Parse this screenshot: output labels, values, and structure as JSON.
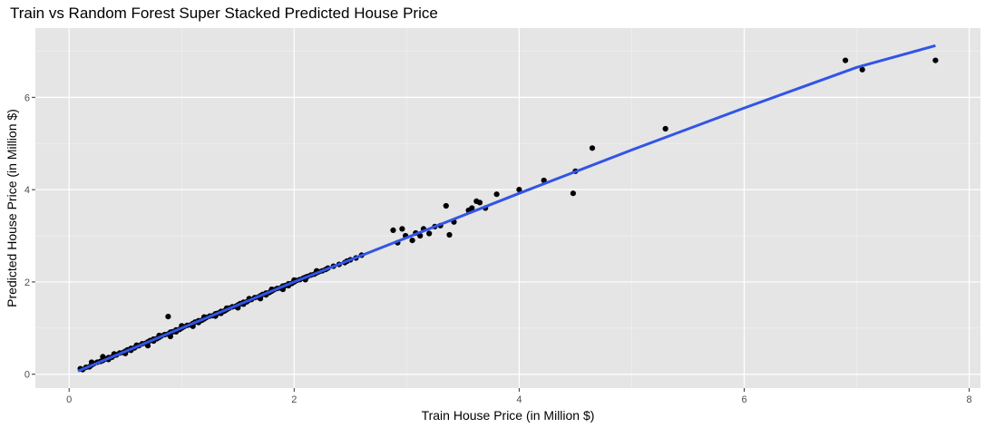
{
  "chart_data": {
    "type": "scatter",
    "title": "Train vs Random Forest Super Stacked Predicted House Price",
    "xlabel": "Train House Price (in Million $)",
    "ylabel": "Predicted House Price (in Million $)",
    "xlim": [
      -0.3,
      8.1
    ],
    "ylim": [
      -0.3,
      7.5
    ],
    "xticks": [
      0,
      2,
      4,
      6,
      8
    ],
    "yticks": [
      0,
      2,
      4,
      6
    ],
    "grid": true,
    "background": "#e5e5e5",
    "point_color": "#000000",
    "line_color": "#3155e6",
    "fit_line": {
      "x": [
        0.08,
        1.0,
        2.0,
        3.0,
        4.0,
        5.0,
        6.0,
        7.0,
        7.7
      ],
      "y": [
        0.07,
        1.0,
        2.0,
        2.96,
        3.92,
        4.86,
        5.77,
        6.65,
        7.12
      ]
    },
    "points": {
      "x": [
        0.1,
        0.12,
        0.15,
        0.18,
        0.2,
        0.22,
        0.25,
        0.28,
        0.3,
        0.32,
        0.35,
        0.38,
        0.4,
        0.42,
        0.45,
        0.48,
        0.5,
        0.52,
        0.55,
        0.58,
        0.6,
        0.62,
        0.65,
        0.68,
        0.7,
        0.72,
        0.75,
        0.78,
        0.8,
        0.82,
        0.85,
        0.88,
        0.9,
        0.92,
        0.95,
        0.98,
        1.0,
        1.02,
        1.05,
        1.08,
        1.1,
        1.12,
        1.15,
        1.18,
        1.2,
        1.22,
        1.25,
        1.28,
        1.3,
        1.32,
        1.35,
        1.38,
        1.4,
        1.42,
        1.45,
        1.48,
        1.5,
        1.52,
        1.55,
        1.58,
        1.6,
        1.62,
        1.65,
        1.68,
        1.7,
        1.72,
        1.75,
        1.78,
        1.8,
        1.82,
        1.85,
        1.88,
        1.9,
        1.92,
        1.95,
        1.98,
        2.0,
        2.02,
        2.05,
        2.08,
        2.1,
        2.12,
        2.15,
        2.18,
        2.2,
        2.22,
        2.25,
        2.28,
        2.3,
        2.35,
        2.4,
        2.45,
        2.5,
        2.55,
        2.6,
        0.3,
        0.5,
        0.7,
        0.9,
        1.1,
        1.3,
        1.5,
        1.7,
        1.9,
        2.1,
        0.4,
        0.6,
        0.8,
        1.0,
        1.2,
        1.4,
        1.6,
        1.8,
        2.0,
        2.2,
        0.2,
        0.35,
        0.55,
        0.75,
        0.95,
        1.15,
        1.35,
        1.55,
        1.75,
        1.95,
        0.88,
        2.47,
        2.88,
        2.92,
        2.96,
        2.99,
        3.05,
        3.08,
        3.12,
        3.15,
        3.2,
        3.25,
        3.3,
        3.35,
        3.38,
        3.42,
        3.55,
        3.58,
        3.62,
        3.65,
        3.7,
        3.8,
        4.0,
        4.22,
        4.48,
        4.5,
        4.65,
        5.3,
        6.9,
        7.05,
        7.7
      ],
      "y": [
        0.12,
        0.1,
        0.15,
        0.16,
        0.2,
        0.23,
        0.26,
        0.28,
        0.3,
        0.33,
        0.36,
        0.37,
        0.41,
        0.42,
        0.46,
        0.47,
        0.5,
        0.53,
        0.56,
        0.57,
        0.61,
        0.62,
        0.66,
        0.67,
        0.7,
        0.73,
        0.76,
        0.77,
        0.8,
        0.83,
        0.86,
        0.87,
        0.91,
        0.92,
        0.96,
        0.97,
        1.0,
        1.03,
        1.06,
        1.07,
        1.1,
        1.13,
        1.16,
        1.17,
        1.2,
        1.23,
        1.26,
        1.27,
        1.31,
        1.32,
        1.36,
        1.37,
        1.4,
        1.43,
        1.46,
        1.47,
        1.5,
        1.53,
        1.56,
        1.57,
        1.61,
        1.62,
        1.66,
        1.67,
        1.7,
        1.73,
        1.76,
        1.77,
        1.8,
        1.83,
        1.86,
        1.87,
        1.91,
        1.92,
        1.96,
        1.97,
        2.0,
        2.03,
        2.05,
        2.08,
        2.1,
        2.12,
        2.15,
        2.17,
        2.2,
        2.22,
        2.24,
        2.27,
        2.3,
        2.34,
        2.38,
        2.42,
        2.48,
        2.52,
        2.58,
        0.38,
        0.45,
        0.62,
        0.82,
        1.04,
        1.26,
        1.44,
        1.64,
        1.84,
        2.05,
        0.44,
        0.63,
        0.84,
        1.05,
        1.24,
        1.43,
        1.64,
        1.84,
        2.04,
        2.24,
        0.26,
        0.32,
        0.52,
        0.72,
        0.92,
        1.12,
        1.32,
        1.52,
        1.72,
        1.92,
        1.25,
        2.45,
        3.12,
        2.85,
        3.15,
        3.0,
        2.9,
        3.06,
        3.0,
        3.15,
        3.05,
        3.2,
        3.22,
        3.65,
        3.02,
        3.3,
        3.55,
        3.6,
        3.75,
        3.72,
        3.6,
        3.9,
        4.0,
        4.2,
        3.92,
        4.4,
        4.9,
        5.32,
        6.8,
        6.6,
        6.8
      ]
    }
  }
}
